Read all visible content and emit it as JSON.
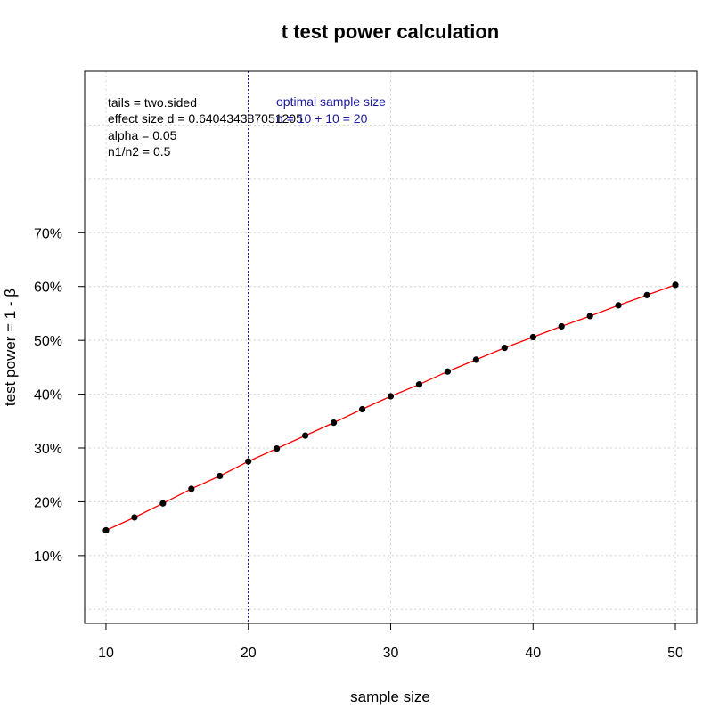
{
  "chart_data": {
    "type": "line",
    "title": "t test power calculation",
    "xlabel": "sample size",
    "ylabel": "test power = 1 - β",
    "xlim": [
      8.5,
      51.5
    ],
    "ylim": [
      -0.026,
      1.0
    ],
    "xticks": [
      10,
      20,
      30,
      40,
      50
    ],
    "xtick_labels": [
      "10",
      "20",
      "30",
      "40",
      "50"
    ],
    "yticks": [
      0.1,
      0.2,
      0.3,
      0.4,
      0.5,
      0.6,
      0.7
    ],
    "ytick_labels": [
      "10%",
      "20%",
      "30%",
      "40%",
      "50%",
      "60%",
      "70%"
    ],
    "grid": true,
    "series": [
      {
        "x": [
          10,
          12,
          14,
          16,
          18,
          20,
          22,
          24,
          26,
          28,
          30,
          32,
          34,
          36,
          38,
          40,
          42,
          44,
          46,
          48,
          50
        ],
        "values": [
          0.147,
          0.171,
          0.197,
          0.224,
          0.248,
          0.275,
          0.299,
          0.323,
          0.347,
          0.372,
          0.396,
          0.418,
          0.442,
          0.464,
          0.486,
          0.506,
          0.526,
          0.545,
          0.565,
          0.584,
          0.603
        ],
        "color": "#ff0000",
        "marker_color": "#000000"
      }
    ],
    "optimal_line": {
      "x": 20,
      "color": "#00007a"
    },
    "annotations": {
      "tails": "tails = two.sided",
      "effect_size": "effect size d = 0.640434387051205",
      "alpha": "alpha = 0.05",
      "ratio": "n1/n2 =  0.5",
      "optimal_title": "optimal sample size",
      "optimal_value": "n = 10 + 10 = 20"
    }
  }
}
